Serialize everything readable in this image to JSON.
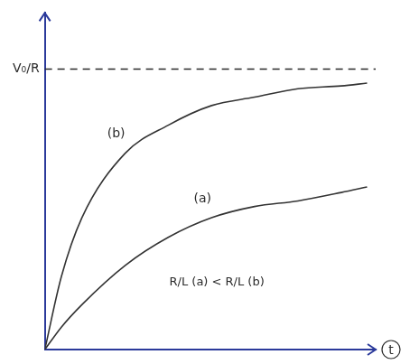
{
  "chart_data": {
    "type": "line",
    "x_label": "t",
    "annotations": [
      "R/L (a) < R/L (b)"
    ],
    "x": [
      0,
      0.5,
      1.12,
      2.43,
      3.73,
      5.04,
      6.34,
      7.65,
      8.96,
      9.74
    ],
    "xlim": [
      0,
      10
    ],
    "xticks": [],
    "ylim": [
      0,
      1.2
    ],
    "yticks": [
      {
        "value": 1,
        "label": "V₀/R"
      }
    ],
    "tick_labels": "y",
    "grid": false,
    "asymptote": {
      "y": 1,
      "line_style": "dashed"
    },
    "series": [
      {
        "name": "(b)",
        "color": "#333333",
        "values": [
          0,
          0.26,
          0.47,
          0.7,
          0.8,
          0.87,
          0.9,
          0.93,
          0.94,
          0.95
        ]
      },
      {
        "name": "(a)",
        "color": "#333333",
        "values": [
          0,
          0.08,
          0.16,
          0.3,
          0.4,
          0.47,
          0.51,
          0.53,
          0.56,
          0.58
        ]
      }
    ]
  }
}
